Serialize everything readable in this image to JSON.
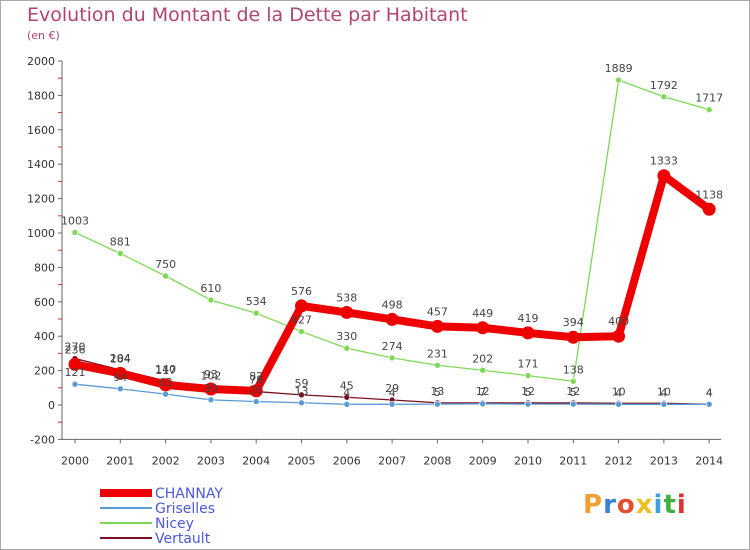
{
  "chart_data": {
    "type": "line",
    "title": "Evolution du Montant de la Dette par Habitant",
    "subtitle": "(en €)",
    "x": [
      "2000",
      "2001",
      "2002",
      "2003",
      "2004",
      "2005",
      "2006",
      "2007",
      "2008",
      "2009",
      "2010",
      "2011",
      "2012",
      "2013",
      "2014"
    ],
    "ylim": [
      -200,
      2000
    ],
    "yticks": [
      -200,
      0,
      200,
      400,
      600,
      800,
      1000,
      1200,
      1400,
      1600,
      1800,
      2000
    ],
    "grid": false,
    "legend_position": "bottom-left",
    "series": [
      {
        "name": "Vertault",
        "color": "#7a1020",
        "values": [
          270,
          204,
          140,
          102,
          78,
          59,
          45,
          29,
          13,
          12,
          12,
          12,
          10,
          10,
          4
        ],
        "labels": [
          "270",
          "204",
          "140",
          "102",
          "78",
          "59",
          "45",
          "29",
          "13",
          "12",
          "12",
          "12",
          "10",
          "10",
          "4"
        ]
      },
      {
        "name": "Griselles",
        "color": "#5b9bd5",
        "values": [
          121,
          94,
          63,
          30,
          20,
          13,
          4,
          4,
          5,
          7,
          5,
          5,
          4,
          4,
          4
        ],
        "labels": [
          "121",
          "94",
          "63",
          "30",
          "20",
          "13",
          "4",
          "4",
          "5",
          "7",
          "5",
          "5",
          "4",
          "4",
          "4"
        ]
      },
      {
        "name": "Nicey",
        "color": "#7ed957",
        "values": [
          1003,
          881,
          750,
          610,
          534,
          427,
          330,
          274,
          231,
          202,
          171,
          138,
          1889,
          1792,
          1717
        ],
        "labels": [
          "1003",
          "881",
          "750",
          "610",
          "534",
          "427",
          "330",
          "274",
          "231",
          "202",
          "171",
          "138",
          "1889",
          "1792",
          "1717"
        ]
      },
      {
        "name": "CHANNAY",
        "color": "#ee0000",
        "values": [
          236,
          184,
          117,
          93,
          82,
          576,
          538,
          498,
          457,
          449,
          419,
          394,
          400,
          1333,
          1138
        ],
        "labels": [
          "236",
          "184",
          "117",
          "93",
          "82",
          "576",
          "538",
          "498",
          "457",
          "449",
          "419",
          "394",
          "400",
          "1333",
          "1138"
        ]
      }
    ],
    "legend": [
      {
        "name": "CHANNAY",
        "color": "#ee0000",
        "text_color": "#4a5ad8"
      },
      {
        "name": "Griselles",
        "color": "#5b9bd5",
        "text_color": "#4a5ad8"
      },
      {
        "name": "Nicey",
        "color": "#7ed957",
        "text_color": "#4a5ad8"
      },
      {
        "name": "Vertault",
        "color": "#7a1020",
        "text_color": "#4a5ad8"
      }
    ]
  },
  "logo": {
    "text": "Proxiti"
  }
}
